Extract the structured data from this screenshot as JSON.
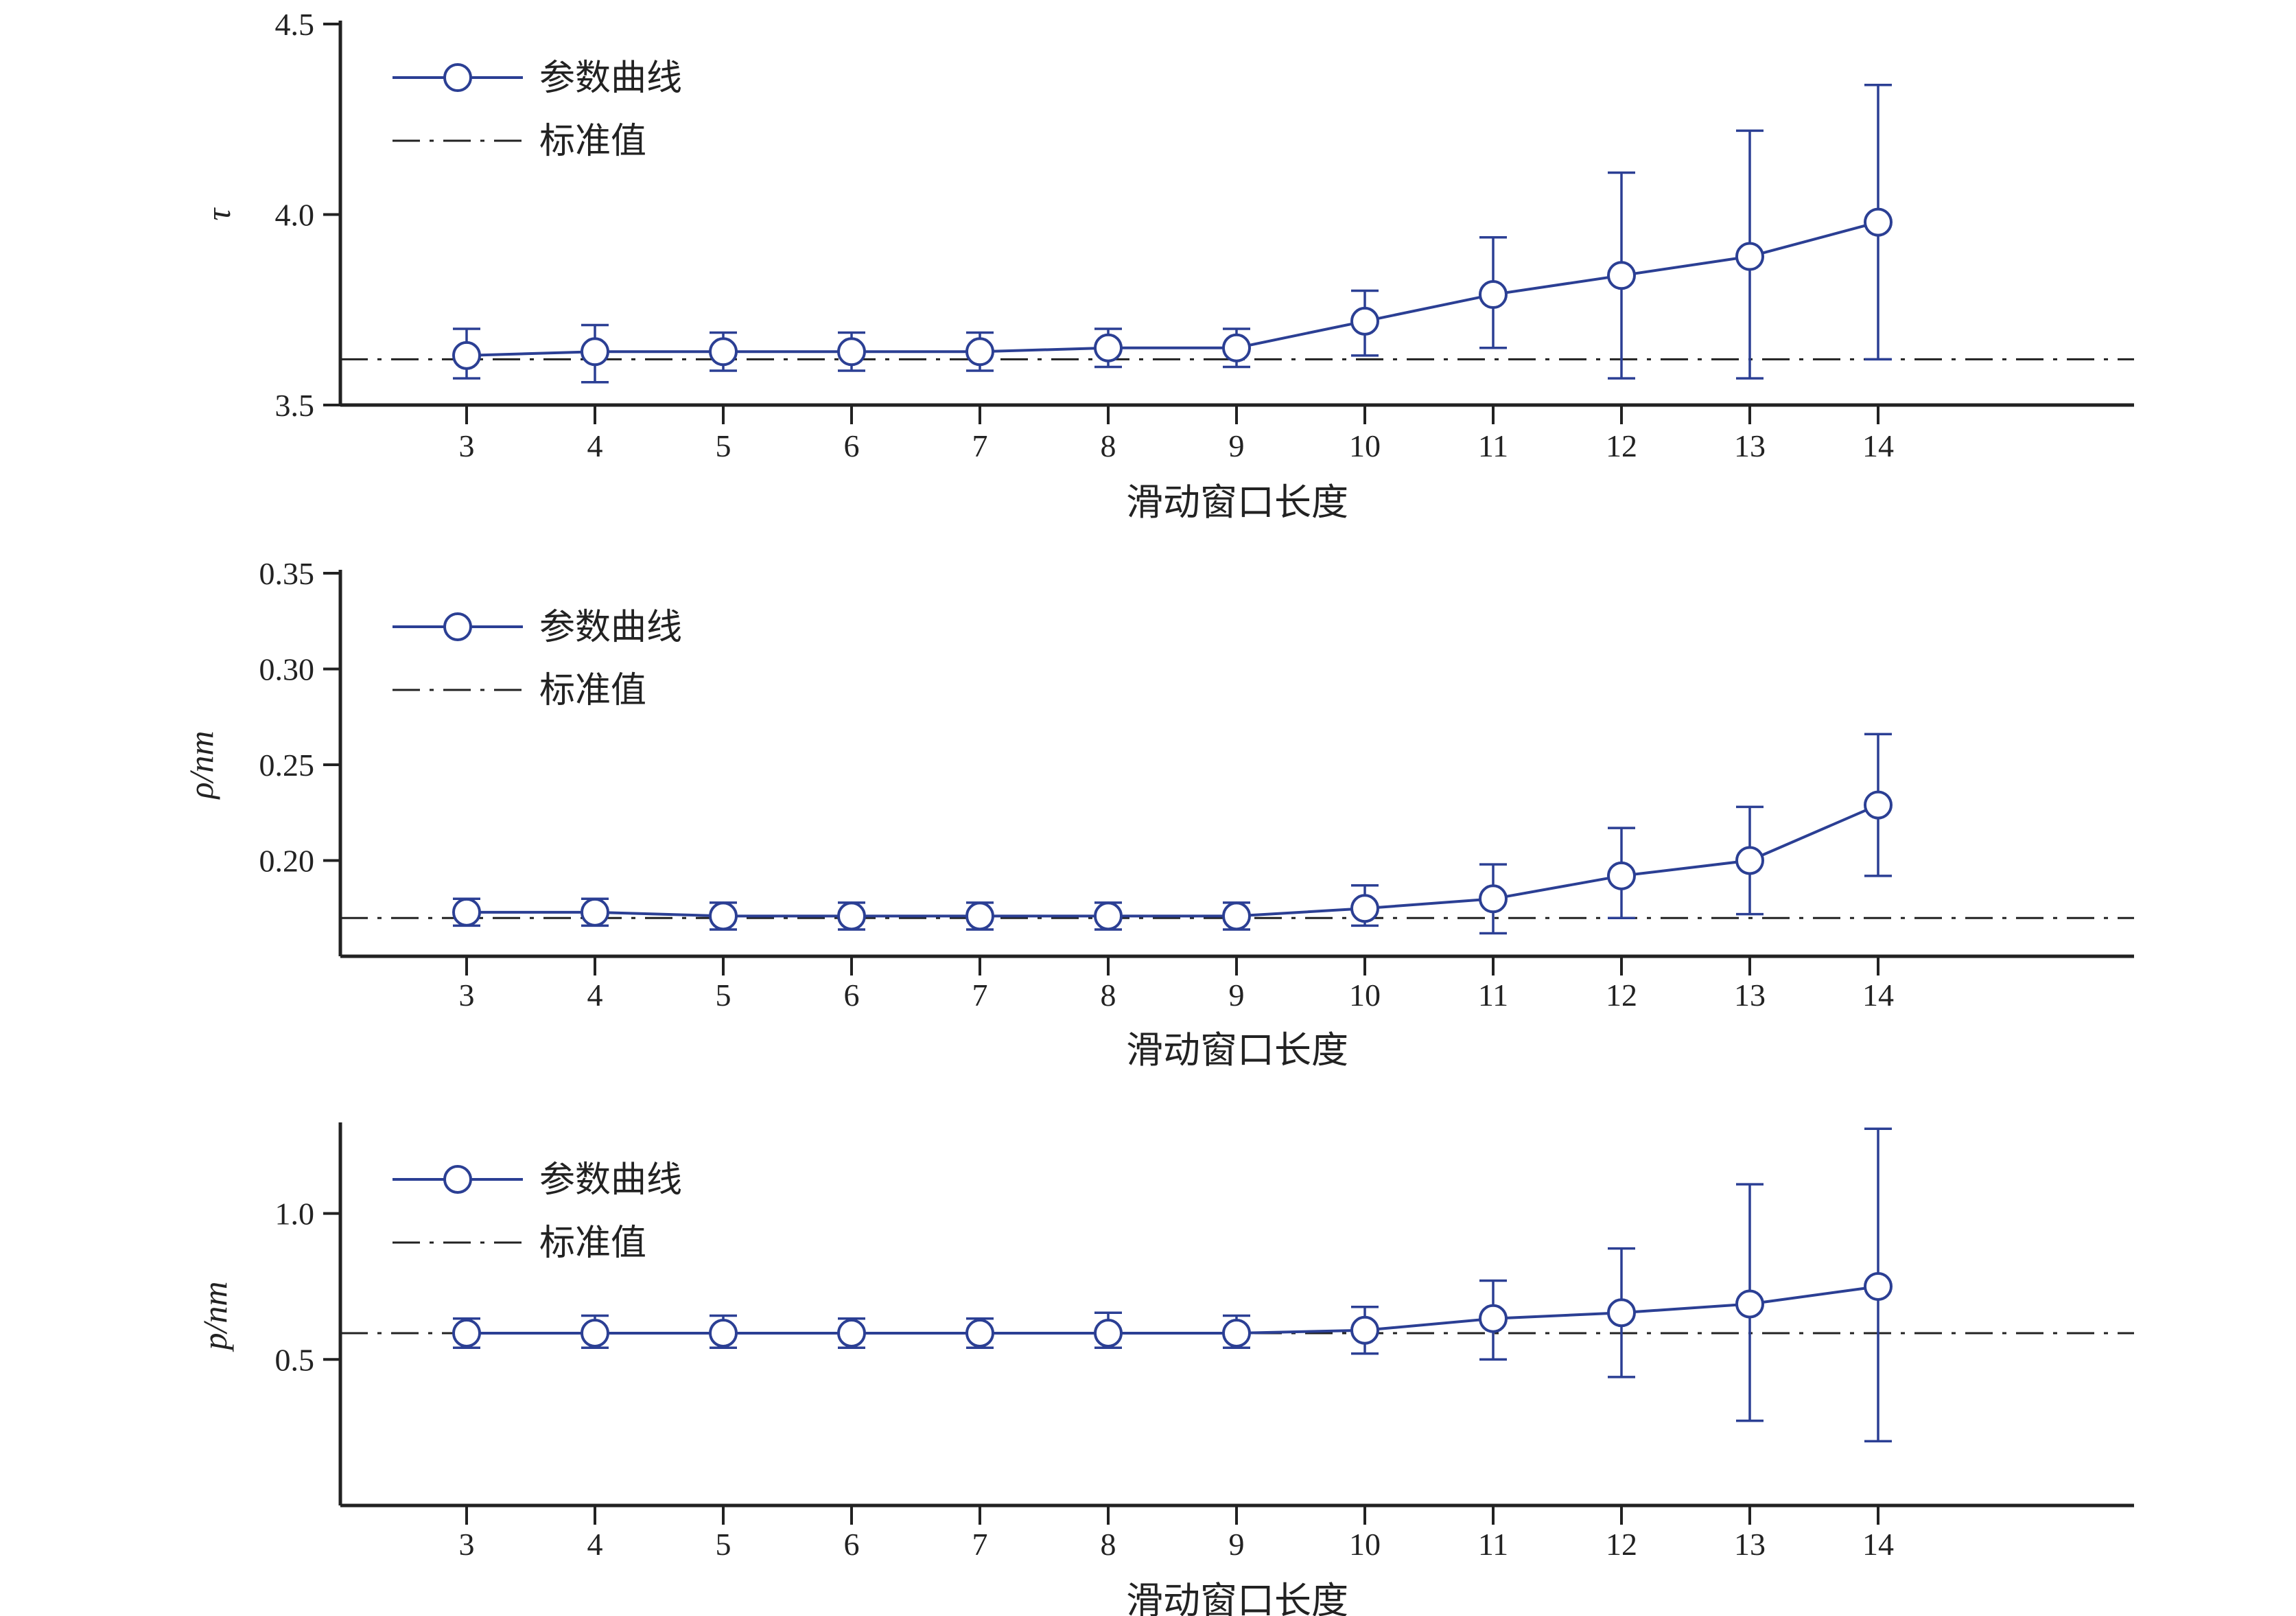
{
  "chart_data": [
    {
      "type": "line",
      "ylabel": "τ",
      "xlabel": "滑动窗口长度",
      "ylim": [
        3.5,
        4.5
      ],
      "yticks": [
        "3.5",
        "4.0",
        "4.5"
      ],
      "x": [
        3,
        4,
        5,
        6,
        7,
        8,
        9,
        10,
        11,
        12,
        13,
        14
      ],
      "xticks": [
        "3",
        "4",
        "5",
        "6",
        "7",
        "8",
        "9",
        "10",
        "11",
        "12",
        "13",
        "14"
      ],
      "series": [
        {
          "name": "参数曲线",
          "values": [
            3.63,
            3.64,
            3.64,
            3.64,
            3.64,
            3.65,
            3.65,
            3.72,
            3.79,
            3.84,
            3.89,
            3.98
          ],
          "error_low": [
            3.57,
            3.56,
            3.59,
            3.59,
            3.59,
            3.6,
            3.6,
            3.63,
            3.65,
            3.57,
            3.57,
            3.62
          ],
          "error_high": [
            3.7,
            3.71,
            3.69,
            3.69,
            3.69,
            3.7,
            3.7,
            3.8,
            3.94,
            4.11,
            4.22,
            4.34
          ]
        }
      ],
      "reference": {
        "name": "标准值",
        "value": 3.62
      },
      "legend": "top-left",
      "grid": false
    },
    {
      "type": "line",
      "ylabel": "ρ/nm",
      "xlabel": "滑动窗口长度",
      "ylim": [
        0.15,
        0.35
      ],
      "yticks": [
        "0.20",
        "0.25",
        "0.30",
        "0.35"
      ],
      "x": [
        3,
        4,
        5,
        6,
        7,
        8,
        9,
        10,
        11,
        12,
        13,
        14
      ],
      "xticks": [
        "3",
        "4",
        "5",
        "6",
        "7",
        "8",
        "9",
        "10",
        "11",
        "12",
        "13",
        "14"
      ],
      "series": [
        {
          "name": "参数曲线",
          "values": [
            0.173,
            0.173,
            0.171,
            0.171,
            0.171,
            0.171,
            0.171,
            0.175,
            0.18,
            0.192,
            0.2,
            0.229
          ],
          "error_low": [
            0.166,
            0.166,
            0.164,
            0.164,
            0.164,
            0.164,
            0.164,
            0.166,
            0.162,
            0.17,
            0.172,
            0.192
          ],
          "error_high": [
            0.18,
            0.18,
            0.178,
            0.178,
            0.178,
            0.178,
            0.178,
            0.187,
            0.198,
            0.217,
            0.228,
            0.266
          ]
        }
      ],
      "reference": {
        "name": "标准值",
        "value": 0.17
      },
      "legend": "top-left",
      "grid": false
    },
    {
      "type": "line",
      "ylabel": "p/nm",
      "xlabel": "滑动窗口长度",
      "ylim": [
        0.0,
        1.3
      ],
      "yticks": [
        "0.5",
        "1.0"
      ],
      "x": [
        3,
        4,
        5,
        6,
        7,
        8,
        9,
        10,
        11,
        12,
        13,
        14
      ],
      "xticks": [
        "3",
        "4",
        "5",
        "6",
        "7",
        "8",
        "9",
        "10",
        "11",
        "12",
        "13",
        "14"
      ],
      "series": [
        {
          "name": "参数曲线",
          "values": [
            0.59,
            0.59,
            0.59,
            0.59,
            0.59,
            0.59,
            0.59,
            0.6,
            0.64,
            0.66,
            0.69,
            0.75
          ],
          "error_low": [
            0.54,
            0.54,
            0.54,
            0.54,
            0.54,
            0.54,
            0.54,
            0.52,
            0.5,
            0.44,
            0.29,
            0.22
          ],
          "error_high": [
            0.64,
            0.65,
            0.65,
            0.64,
            0.64,
            0.66,
            0.65,
            0.68,
            0.77,
            0.88,
            1.1,
            1.29
          ]
        }
      ],
      "reference": {
        "name": "标准值",
        "value": 0.59
      },
      "legend": "top-left",
      "grid": false
    }
  ],
  "colors": {
    "series": "#2b3f94",
    "reference": "#222222",
    "axis": "#222222"
  }
}
